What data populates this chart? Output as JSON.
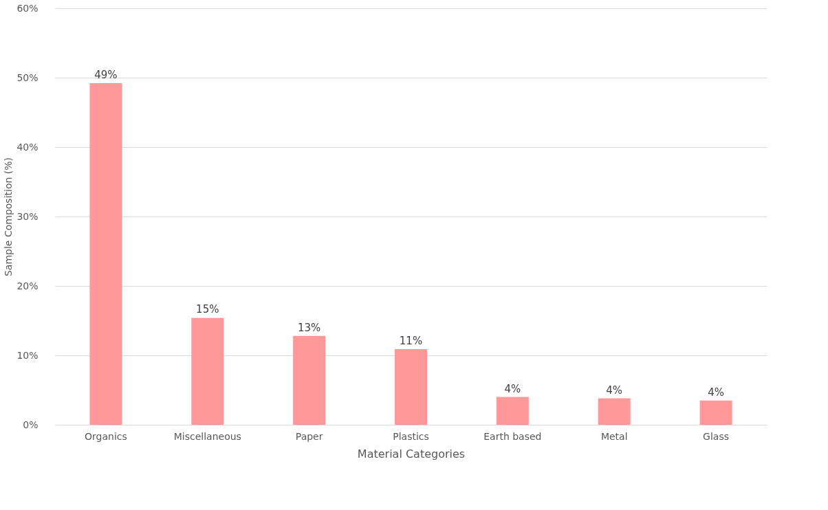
{
  "chart_data": {
    "type": "bar",
    "xlabel": "Material Categories",
    "ylabel": "Sample Composition (%)",
    "categories": [
      "Organics",
      "Miscellaneous",
      "Paper",
      "Plastics",
      "Earth based",
      "Metal",
      "Glass"
    ],
    "values": [
      49.2,
      15.4,
      12.8,
      10.9,
      4.0,
      3.8,
      3.5
    ],
    "value_labels": [
      "49%",
      "15%",
      "13%",
      "11%",
      "4%",
      "4%",
      "4%"
    ],
    "color": "#ff9999",
    "ylim": [
      0,
      60
    ],
    "yticks": [
      {
        "value": 0,
        "label": "0%"
      },
      {
        "value": 10,
        "label": "10%"
      },
      {
        "value": 20,
        "label": "20%"
      },
      {
        "value": 30,
        "label": "30%"
      },
      {
        "value": 40,
        "label": "40%"
      },
      {
        "value": 50,
        "label": "50%"
      },
      {
        "value": 60,
        "label": "60%"
      }
    ],
    "grid": "y"
  }
}
